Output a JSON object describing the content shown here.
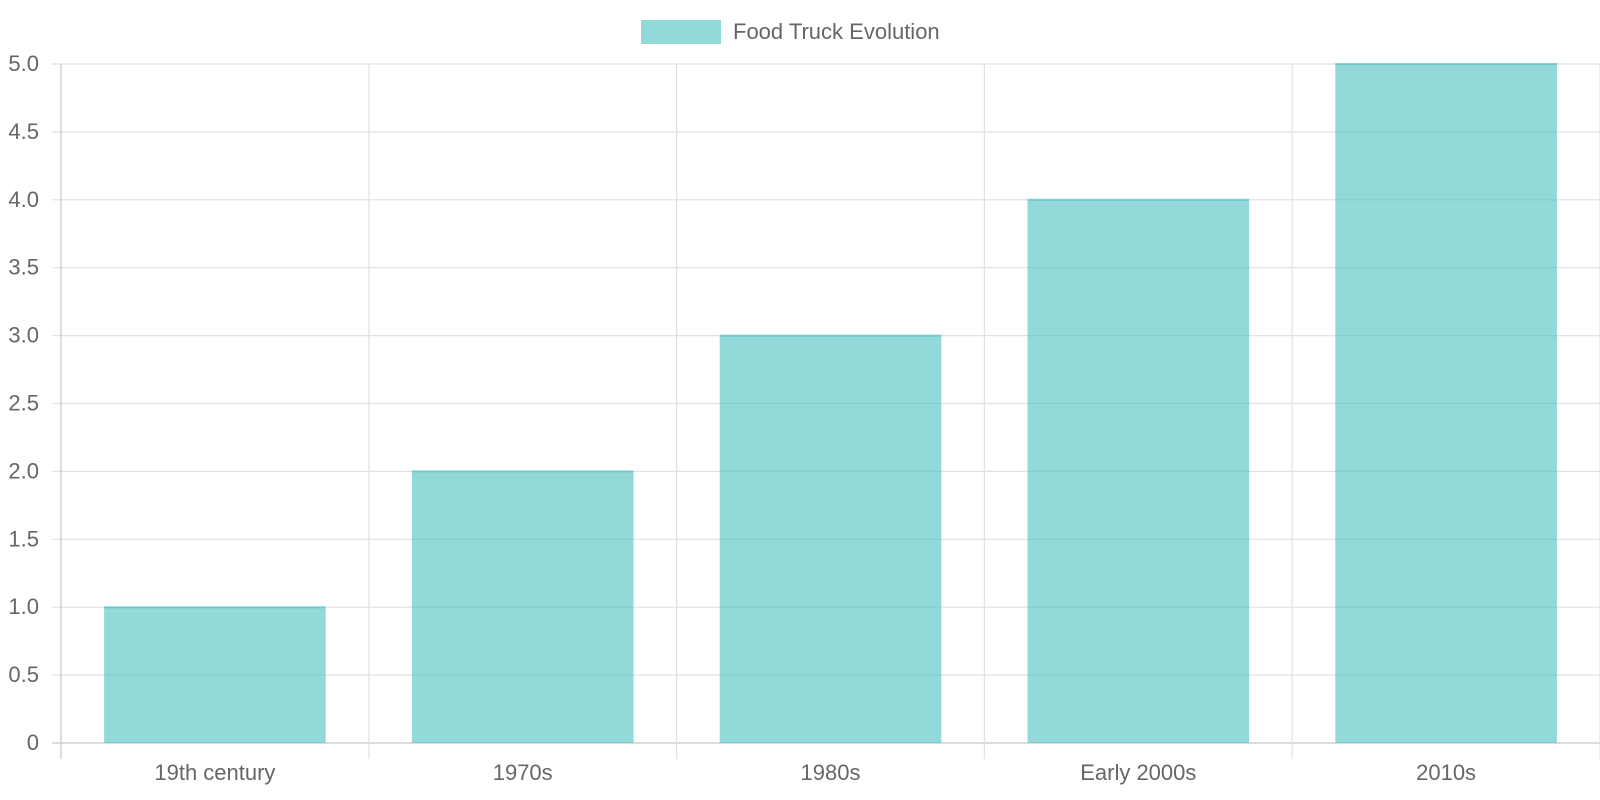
{
  "chart_data": {
    "type": "bar",
    "categories": [
      "19th century",
      "1970s",
      "1980s",
      "Early 2000s",
      "2010s"
    ],
    "series": [
      {
        "name": "Food Truck Evolution",
        "values": [
          1,
          2,
          3,
          4,
          5
        ],
        "color": "#4bc0c0",
        "fill_opacity": 0.6
      }
    ],
    "y_ticks": [
      "0",
      "0.5",
      "1.0",
      "1.5",
      "2.0",
      "2.5",
      "3.0",
      "3.5",
      "4.0",
      "4.5",
      "5.0"
    ],
    "ylim": [
      0,
      5
    ],
    "grid": true,
    "legend_position": "top-center",
    "title": "",
    "xlabel": "",
    "ylabel": ""
  }
}
